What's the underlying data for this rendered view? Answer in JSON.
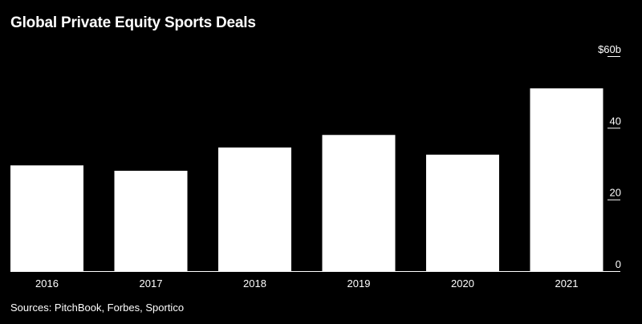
{
  "title": "Global Private Equity Sports Deals",
  "source": "Sources: PitchBook, Forbes, Sportico",
  "colors": {
    "background": "#000000",
    "bar": "#ffffff",
    "text": "#ffffff"
  },
  "chart_data": {
    "type": "bar",
    "title": "Global Private Equity Sports Deals",
    "categories": [
      "2016",
      "2017",
      "2018",
      "2019",
      "2020",
      "2021"
    ],
    "values": [
      29.5,
      28,
      34.5,
      38,
      32.5,
      51
    ],
    "ylim": [
      0,
      60
    ],
    "yticks": [
      0,
      20,
      40,
      60
    ],
    "ytick_labels": [
      "0",
      "20",
      "40",
      "$60b"
    ],
    "yaxis_side": "right",
    "grid": false,
    "xlabel": "",
    "ylabel": ""
  }
}
